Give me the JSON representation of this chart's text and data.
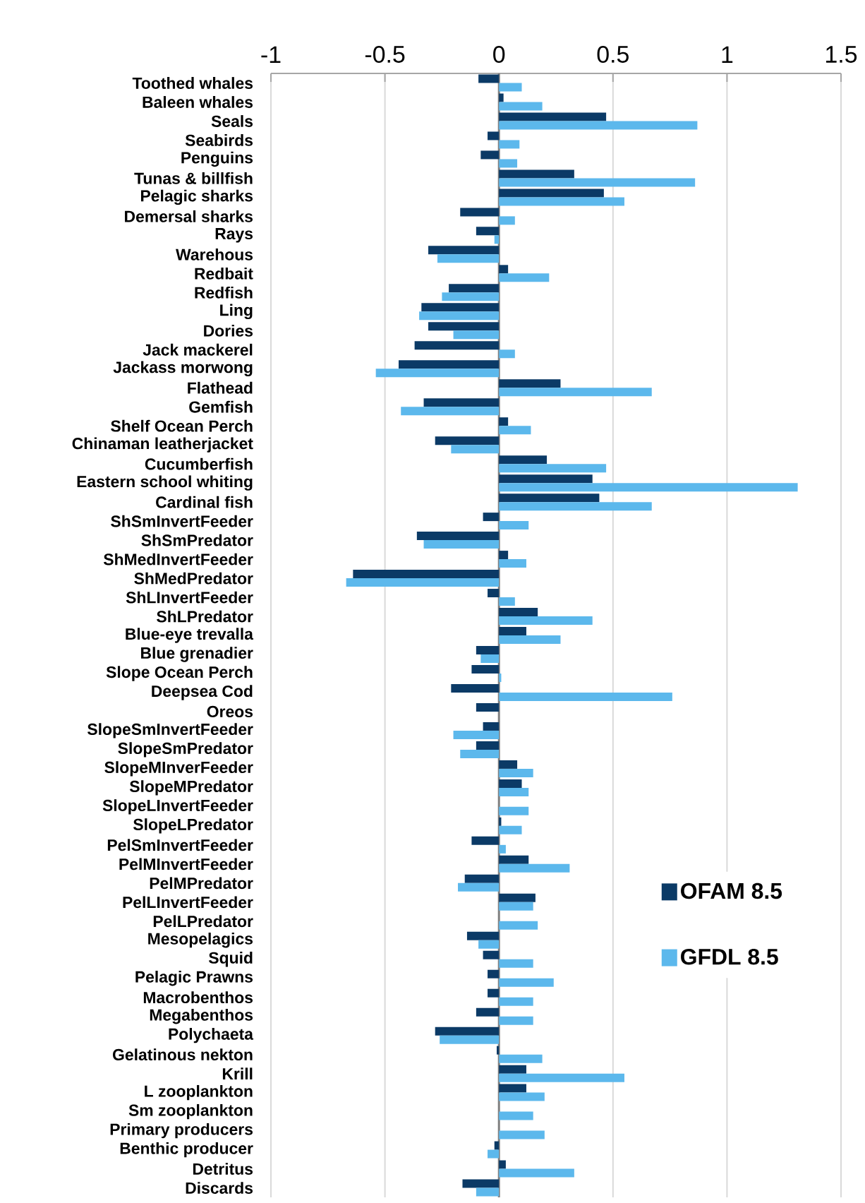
{
  "chart_data": {
    "type": "bar",
    "orientation": "horizontal",
    "categories": [
      "Toothed whales",
      "Baleen whales",
      "Seals",
      "Seabirds",
      "Penguins",
      "Tunas & billfish",
      "Pelagic sharks",
      "Demersal sharks",
      "Rays",
      "Warehous",
      "Redbait",
      "Redfish",
      "Ling",
      "Dories",
      "Jack mackerel",
      "Jackass morwong",
      "Flathead",
      "Gemfish",
      "Shelf Ocean Perch",
      "Chinaman leatherjacket",
      "Cucumberfish",
      "Eastern school whiting",
      "Cardinal fish",
      "ShSmInvertFeeder",
      "ShSmPredator",
      "ShMedInvertFeeder",
      "ShMedPredator",
      "ShLInvertFeeder",
      "ShLPredator",
      "Blue-eye trevalla",
      "Blue grenadier",
      "Slope Ocean Perch",
      "Deepsea Cod",
      "Oreos",
      "SlopeSmInvertFeeder",
      "SlopeSmPredator",
      "SlopeMInverFeeder",
      "SlopeMPredator",
      "SlopeLInvertFeeder",
      "SlopeLPredator",
      "PelSmInvertFeeder",
      "PelMInvertFeeder",
      "PelMPredator",
      "PelLInvertFeeder",
      "PelLPredator",
      "Mesopelagics",
      "Squid",
      "Pelagic Prawns",
      "Macrobenthos",
      "Megabenthos",
      "Polychaeta",
      "Gelatinous nekton",
      "Krill",
      "L zooplankton",
      "Sm zooplankton",
      "Primary producers",
      "Benthic producer",
      "Detritus",
      "Discards"
    ],
    "series": [
      {
        "name": "OFAM 8.5",
        "color": "#0b3a66",
        "values": [
          -0.09,
          0.02,
          0.47,
          -0.05,
          -0.08,
          0.33,
          0.46,
          -0.17,
          -0.1,
          -0.31,
          0.04,
          -0.22,
          -0.34,
          -0.31,
          -0.37,
          -0.44,
          0.27,
          -0.33,
          0.04,
          -0.28,
          0.21,
          0.41,
          0.44,
          -0.07,
          -0.36,
          0.04,
          -0.64,
          -0.05,
          0.17,
          0.12,
          -0.1,
          -0.12,
          -0.21,
          -0.1,
          -0.07,
          -0.1,
          0.08,
          0.1,
          0,
          0.01,
          -0.12,
          0.13,
          -0.15,
          0.16,
          0,
          -0.14,
          -0.07,
          -0.05,
          -0.05,
          -0.1,
          -0.28,
          -0.01,
          0.12,
          0.12,
          0,
          0,
          -0.02,
          0.03,
          -0.16
        ]
      },
      {
        "name": "GFDL 8.5",
        "color": "#5cb8ec",
        "values": [
          0.1,
          0.19,
          0.87,
          0.09,
          0.08,
          0.86,
          0.55,
          0.07,
          -0.02,
          -0.27,
          0.22,
          -0.25,
          -0.35,
          -0.2,
          0.07,
          -0.54,
          0.67,
          -0.43,
          0.14,
          -0.21,
          0.47,
          1.31,
          0.67,
          0.13,
          -0.33,
          0.12,
          -0.67,
          0.07,
          0.41,
          0.27,
          -0.08,
          0.01,
          0.76,
          0,
          -0.2,
          -0.17,
          0.15,
          0.13,
          0.13,
          0.1,
          0.03,
          0.31,
          -0.18,
          0.15,
          0.17,
          -0.09,
          0.15,
          0.24,
          0.15,
          0.15,
          -0.26,
          0.19,
          0.55,
          0.2,
          0.15,
          0.2,
          -0.05,
          0.33,
          -0.1
        ]
      }
    ],
    "xlim": [
      -1,
      1.5
    ],
    "xticks": [
      -1,
      -0.5,
      0,
      0.5,
      1,
      1.5
    ],
    "grid": "x",
    "legend": "right"
  }
}
